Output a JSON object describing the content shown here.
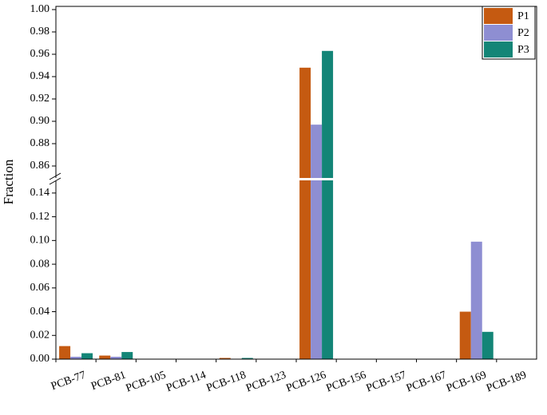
{
  "chart_data": {
    "type": "bar",
    "y_label": "Fraction",
    "categories": [
      "PCB-77",
      "PCB-81",
      "PCB-105",
      "PCB-114",
      "PCB-118",
      "PCB-123",
      "PCB-126",
      "PCB-156",
      "PCB-157",
      "PCB-167",
      "PCB-169",
      "PCB-189"
    ],
    "series": [
      {
        "name": "P1",
        "color": "#c55a11",
        "values": [
          0.011,
          0.003,
          0,
          0,
          0.001,
          0,
          0.948,
          0,
          0,
          0,
          0.04,
          0
        ]
      },
      {
        "name": "P2",
        "color": "#8e8ed2",
        "values": [
          0.002,
          0.002,
          0,
          0,
          0,
          0,
          0.897,
          0,
          0,
          0,
          0.099,
          0
        ]
      },
      {
        "name": "P3",
        "color": "#138577",
        "values": [
          0.005,
          0.006,
          0,
          0,
          0.001,
          0,
          0.963,
          0,
          0,
          0,
          0.023,
          0
        ]
      }
    ],
    "ylim": [
      0,
      1.0
    ],
    "ybreak": [
      0.15,
      0.85
    ],
    "yticks": [
      {
        "value": 0,
        "label": "0.00"
      },
      {
        "value": 0.02,
        "label": "0.02"
      },
      {
        "value": 0.04,
        "label": "0.04"
      },
      {
        "value": 0.06,
        "label": "0.06"
      },
      {
        "value": 0.08,
        "label": "0.08"
      },
      {
        "value": 0.1,
        "label": "0.10"
      },
      {
        "value": 0.12,
        "label": "0.12"
      },
      {
        "value": 0.14,
        "label": "0.14"
      },
      {
        "value": 0.86,
        "label": "0.86"
      },
      {
        "value": 0.88,
        "label": "0.88"
      },
      {
        "value": 0.9,
        "label": "0.90"
      },
      {
        "value": 0.92,
        "label": "0.92"
      },
      {
        "value": 0.94,
        "label": "0.94"
      },
      {
        "value": 0.96,
        "label": "0.96"
      },
      {
        "value": 0.98,
        "label": "0.98"
      },
      {
        "value": 1.0,
        "label": "1.00"
      }
    ],
    "legend": "upper right"
  }
}
